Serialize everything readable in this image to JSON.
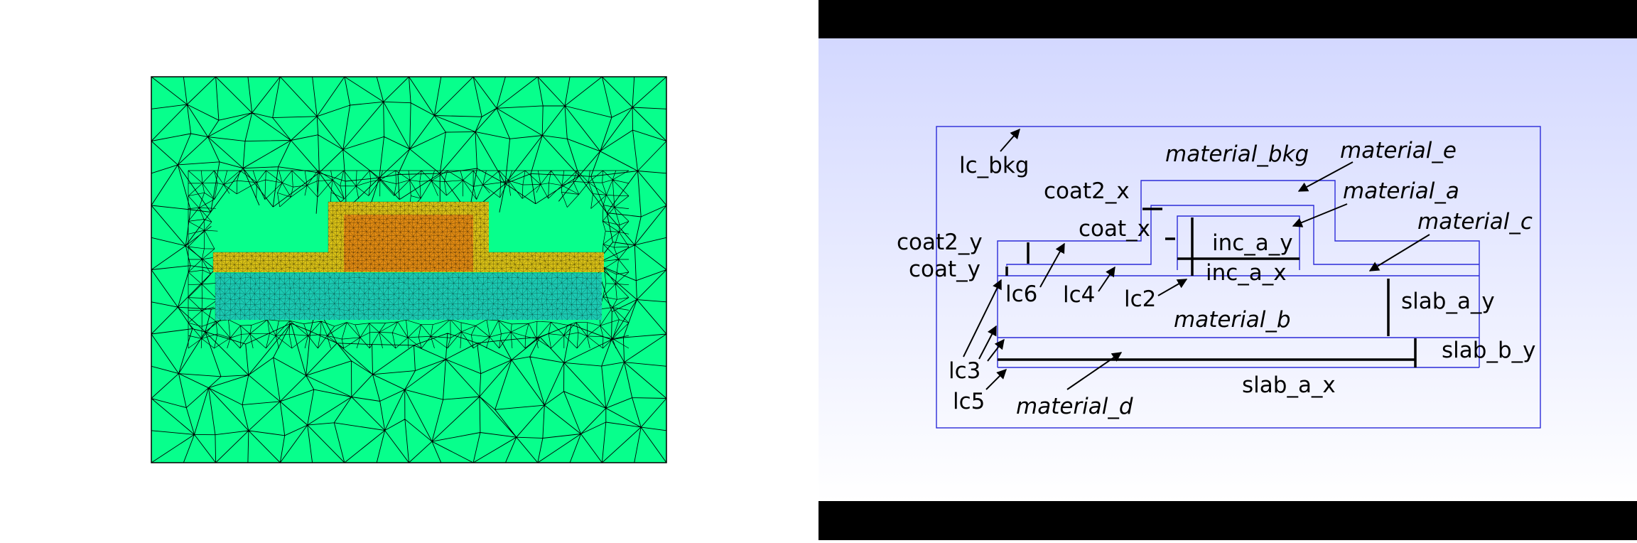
{
  "colors": {
    "background_fill": "#07ff8c",
    "coating_fill": "#d8c016",
    "inclusion_fill": "#e08a12",
    "slab_fill": "#1bc9b2",
    "mesh_line": "#000000",
    "schematic_gradient_top": "#d3d8ff",
    "schematic_gradient_bottom": "#ffffff",
    "boundary_line": "#2b2bd9",
    "letterbox": "#000000"
  },
  "schematic": {
    "labels": {
      "lc_bkg": "lc_bkg",
      "material_bkg": "material_bkg",
      "material_e": "material_e",
      "coat2_x": "coat2_x",
      "material_a": "material_a",
      "coat_x": "coat_x",
      "material_c": "material_c",
      "coat2_y": "coat2_y",
      "inc_a_y": "inc_a_y",
      "coat_y": "coat_y",
      "inc_a_x": "inc_a_x",
      "lc6": "lc6",
      "lc4": "lc4",
      "lc2": "lc2",
      "slab_a_y": "slab_a_y",
      "material_b": "material_b",
      "slab_b_y": "slab_b_y",
      "lc3": "lc3",
      "lc5": "lc5",
      "material_d": "material_d",
      "slab_a_x": "slab_a_x"
    }
  }
}
